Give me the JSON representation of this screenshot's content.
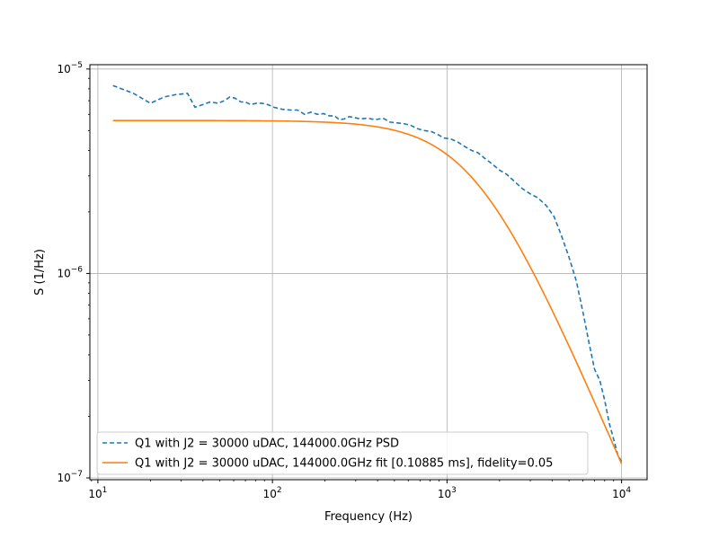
{
  "chart_data": {
    "type": "line",
    "xlabel": "Frequency (Hz)",
    "ylabel": "S (1/Hz)",
    "xscale": "log",
    "yscale": "log",
    "xlim": [
      9,
      14000
    ],
    "ylim": [
      9.8e-08,
      1.05e-05
    ],
    "grid": true,
    "legend_position": "lower-left",
    "x_ticks": [
      {
        "value": 10,
        "base": "10",
        "exp": "1"
      },
      {
        "value": 100,
        "base": "10",
        "exp": "2"
      },
      {
        "value": 1000,
        "base": "10",
        "exp": "3"
      },
      {
        "value": 10000,
        "base": "10",
        "exp": "4"
      }
    ],
    "y_ticks": [
      {
        "value": 1e-07,
        "base": "10",
        "exp": "−7"
      },
      {
        "value": 1e-06,
        "base": "10",
        "exp": "−6"
      },
      {
        "value": 1e-05,
        "base": "10",
        "exp": "−5"
      }
    ],
    "series": [
      {
        "name": "Q1 with J2 = 30000 uDAC, 144000.0GHz PSD",
        "color": "#1f77b4",
        "style": "dashed",
        "x": [
          12.2,
          16,
          20,
          24,
          28,
          32.6,
          36,
          40,
          44,
          49,
          53,
          57,
          61,
          66,
          70,
          75,
          81,
          87,
          94,
          102,
          114,
          127,
          139,
          153,
          166,
          181,
          196,
          212,
          227,
          242,
          258,
          275,
          290,
          320,
          350,
          390,
          430,
          470,
          520,
          570,
          620,
          680,
          740,
          810,
          880,
          960,
          1050,
          1150,
          1250,
          1380,
          1500,
          1650,
          1800,
          2000,
          2200,
          2400,
          2700,
          3000,
          3300,
          3700,
          4100,
          4500,
          5000,
          5500,
          6000,
          6500,
          7000,
          7500,
          8000,
          8500,
          9000,
          9500,
          10000
        ],
        "y": [
          8.3e-06,
          7.6e-06,
          6.8e-06,
          7.3e-06,
          7.5e-06,
          7.6e-06,
          6.5e-06,
          6.7e-06,
          6.9e-06,
          6.8e-06,
          7e-06,
          7.3e-06,
          7.2e-06,
          6.9e-06,
          6.9e-06,
          6.7e-06,
          6.8e-06,
          6.8e-06,
          6.7e-06,
          6.5e-06,
          6.35e-06,
          6.3e-06,
          6.3e-06,
          6e-06,
          6.15e-06,
          6e-06,
          6.05e-06,
          5.9e-06,
          5.9e-06,
          5.65e-06,
          5.7e-06,
          5.85e-06,
          5.8e-06,
          5.7e-06,
          5.75e-06,
          5.65e-06,
          5.75e-06,
          5.5e-06,
          5.45e-06,
          5.4e-06,
          5.3e-06,
          5.1e-06,
          5e-06,
          4.95e-06,
          4.8e-06,
          4.6e-06,
          4.55e-06,
          4.4e-06,
          4.2e-06,
          4e-06,
          3.9e-06,
          3.65e-06,
          3.45e-06,
          3.2e-06,
          3.05e-06,
          2.85e-06,
          2.6e-06,
          2.45e-06,
          2.35e-06,
          2.15e-06,
          1.9e-06,
          1.55e-06,
          1.2e-06,
          9.2e-07,
          6.5e-07,
          4.6e-07,
          3.4e-07,
          3e-07,
          2.4e-07,
          1.85e-07,
          1.55e-07,
          1.3e-07,
          1.2e-07
        ]
      },
      {
        "name": "Q1 with J2 = 30000 uDAC, 144000.0GHz fit [0.10885 ms], fidelity=0.05",
        "color": "#ff7f0e",
        "style": "solid",
        "model": "lorentzian",
        "amplitude": 5.6e-06,
        "tau_ms": 0.10885,
        "x_range": [
          12.2,
          10000
        ]
      }
    ]
  }
}
